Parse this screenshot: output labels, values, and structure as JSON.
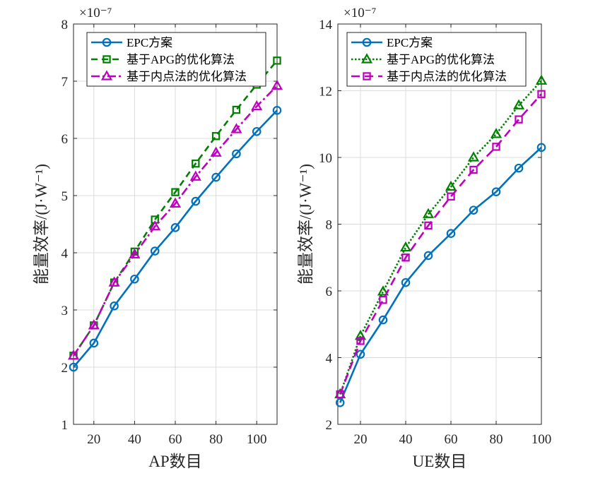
{
  "chart_data": [
    {
      "type": "line",
      "xlabel": "AP数目",
      "ylabel": "能量效率/(J·W⁻¹)",
      "exponent": "×10⁻⁷",
      "xlim": [
        10,
        110
      ],
      "ylim": [
        1,
        8
      ],
      "xticks": [
        20,
        40,
        60,
        80,
        100
      ],
      "yticks": [
        1,
        2,
        3,
        4,
        5,
        6,
        7,
        8
      ],
      "grid": true,
      "legend_position": "top-left",
      "x": [
        10,
        20,
        30,
        40,
        50,
        60,
        70,
        80,
        90,
        100,
        110
      ],
      "series": [
        {
          "name": "EPC方案",
          "color": "#0072BD",
          "dash": "",
          "marker": "circle",
          "values": [
            2.0,
            2.42,
            3.07,
            3.54,
            4.03,
            4.44,
            4.9,
            5.32,
            5.73,
            6.12,
            6.49
          ]
        },
        {
          "name": "基于APG的优化算法",
          "color": "#008000",
          "dash": "9,6",
          "marker": "square",
          "values": [
            2.2,
            2.73,
            3.48,
            4.02,
            4.58,
            5.06,
            5.56,
            6.04,
            6.5,
            6.94,
            7.36
          ]
        },
        {
          "name": "基于内点法的优化算法",
          "color": "#BF00BF",
          "dash": "12,4,3,4",
          "marker": "triangle",
          "values": [
            2.2,
            2.73,
            3.48,
            3.97,
            4.46,
            4.86,
            5.33,
            5.75,
            6.16,
            6.56,
            6.92
          ]
        }
      ]
    },
    {
      "type": "line",
      "xlabel": "UE数目",
      "ylabel": "能量效率/(J·W⁻¹)",
      "exponent": "×10⁻⁷",
      "xlim": [
        10,
        100
      ],
      "ylim": [
        2,
        14
      ],
      "xticks": [
        20,
        40,
        60,
        80,
        100
      ],
      "yticks": [
        2,
        4,
        6,
        8,
        10,
        12,
        14
      ],
      "grid": true,
      "legend_position": "top-left",
      "x": [
        11,
        20,
        30,
        40,
        50,
        60,
        70,
        80,
        90,
        100
      ],
      "series": [
        {
          "name": "EPC方案",
          "color": "#0072BD",
          "dash": "",
          "marker": "circle",
          "values": [
            2.65,
            4.1,
            5.13,
            6.25,
            7.06,
            7.72,
            8.42,
            8.97,
            9.68,
            10.3
          ]
        },
        {
          "name": "基于APG的优化算法",
          "color": "#008000",
          "dash": "2.5,2.5",
          "marker": "triangle",
          "values": [
            2.9,
            4.65,
            5.98,
            7.3,
            8.3,
            9.12,
            10.0,
            10.7,
            11.56,
            12.3
          ]
        },
        {
          "name": "基于内点法的优化算法",
          "color": "#BF00BF",
          "dash": "12,7",
          "marker": "square",
          "values": [
            2.9,
            4.5,
            5.73,
            7.0,
            7.96,
            8.83,
            9.63,
            10.32,
            11.14,
            11.9
          ]
        }
      ]
    }
  ]
}
